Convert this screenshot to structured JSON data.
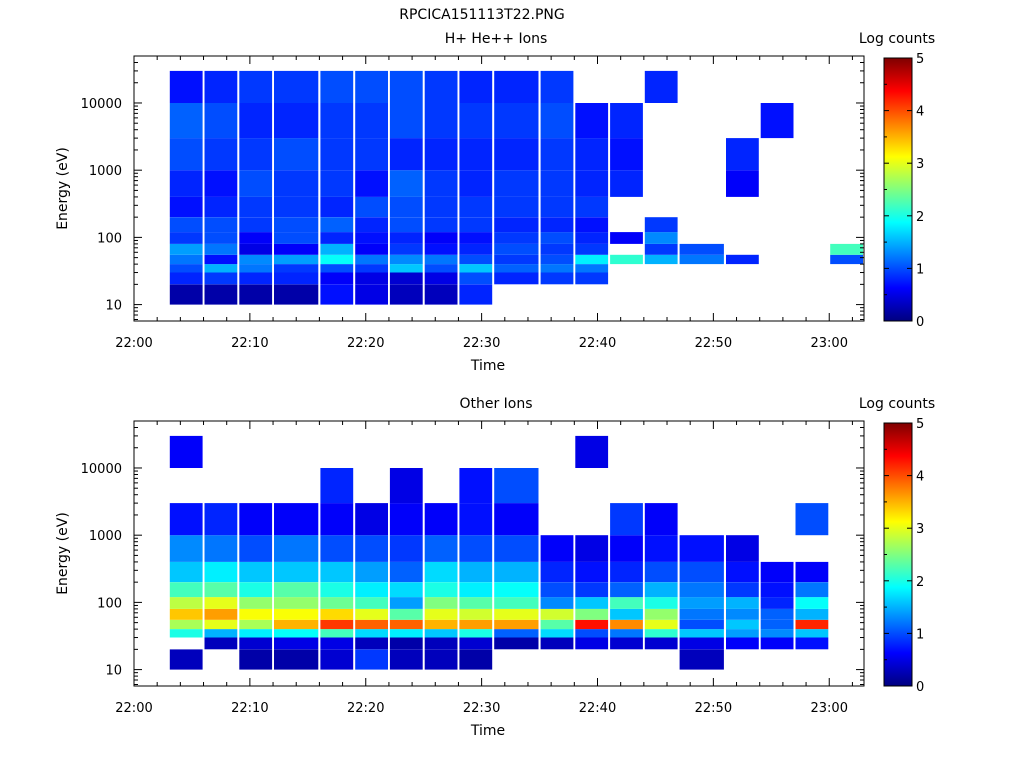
{
  "figure": {
    "title": "RPCICA151113T22.PNG"
  },
  "colorscale": {
    "stops": [
      "#00007f",
      "#0000ff",
      "#0080ff",
      "#00ffff",
      "#80ff80",
      "#ffff00",
      "#ff8000",
      "#ff0000",
      "#7f0000"
    ]
  },
  "chart_data": [
    {
      "type": "heatmap",
      "title": "H+ He++ Ions",
      "xlabel": "Time",
      "ylabel": "Energy (eV)",
      "colorbar_label": "Log counts",
      "colorbar_ticks": [
        "0",
        "1",
        "2",
        "3",
        "4",
        "5"
      ],
      "zlim": [
        0,
        5
      ],
      "xlim": [
        "22:00",
        "23:03"
      ],
      "x_ticks": [
        "22:00",
        "22:10",
        "22:20",
        "22:30",
        "22:40",
        "22:50",
        "23:00"
      ],
      "ylim": [
        5.7,
        50000
      ],
      "y_scale": "log",
      "y_ticks": [
        "10",
        "100",
        "1000",
        "10000"
      ],
      "time_bins_start": [
        "22:03",
        "22:06",
        "22:09",
        "22:12",
        "22:16",
        "22:19",
        "22:22",
        "22:25",
        "22:28",
        "22:31",
        "22:35",
        "22:38",
        "22:41",
        "22:44",
        "22:47",
        "22:51",
        "22:54",
        "22:57",
        "23:00"
      ],
      "energy_bands_ev": [
        10,
        20,
        30,
        40,
        55,
        80,
        120,
        200,
        400,
        1000,
        3000,
        10000,
        30000
      ],
      "log_counts": [
        [
          0.2,
          0.8,
          1.0,
          1.2,
          1.4,
          0.9,
          1.0,
          0.7,
          0.8,
          1.0,
          1.1,
          0.7
        ],
        [
          0.2,
          0.9,
          1.5,
          0.7,
          1.2,
          1.0,
          1.0,
          0.8,
          0.7,
          0.9,
          1.0,
          0.8
        ],
        [
          0.2,
          0.8,
          1.2,
          1.3,
          0.5,
          0.6,
          0.9,
          0.9,
          1.0,
          0.9,
          0.8,
          0.9
        ],
        [
          0.2,
          0.8,
          0.9,
          1.4,
          0.6,
          1.0,
          1.0,
          0.9,
          0.9,
          1.0,
          0.8,
          0.9
        ],
        [
          0.7,
          0.6,
          1.0,
          1.9,
          1.5,
          0.8,
          1.1,
          0.8,
          0.9,
          0.9,
          0.9,
          1.0
        ],
        [
          0.5,
          0.5,
          0.9,
          1.2,
          0.6,
          0.7,
          0.8,
          1.0,
          0.7,
          0.9,
          0.9,
          1.0
        ],
        [
          0.3,
          0.4,
          1.6,
          1.3,
          0.9,
          0.8,
          1.0,
          1.0,
          1.1,
          0.8,
          1.0,
          1.0
        ],
        [
          0.3,
          0.5,
          1.0,
          1.2,
          0.7,
          0.6,
          0.9,
          0.9,
          0.9,
          0.8,
          0.9,
          0.9
        ],
        [
          0.8,
          1.0,
          1.6,
          1.0,
          0.8,
          0.7,
          0.9,
          0.9,
          0.8,
          0.8,
          0.9,
          0.8
        ],
        [
          null,
          0.8,
          1.1,
          0.9,
          1.0,
          0.9,
          0.8,
          0.9,
          0.9,
          0.8,
          0.9,
          0.8
        ],
        [
          null,
          0.9,
          1.2,
          1.0,
          0.9,
          1.0,
          0.8,
          0.9,
          0.9,
          0.9,
          1.0,
          0.9
        ],
        [
          null,
          0.9,
          1.2,
          1.8,
          0.9,
          0.8,
          0.7,
          0.9,
          0.8,
          0.8,
          0.7,
          null
        ],
        [
          null,
          null,
          null,
          2.1,
          null,
          0.6,
          null,
          null,
          0.8,
          0.7,
          0.8,
          null
        ],
        [
          null,
          null,
          null,
          1.5,
          0.9,
          1.3,
          0.9,
          null,
          null,
          null,
          null,
          0.8
        ],
        [
          null,
          null,
          null,
          1.2,
          1.0,
          null,
          null,
          null,
          null,
          null,
          null,
          null
        ],
        [
          null,
          null,
          null,
          0.8,
          null,
          null,
          null,
          null,
          0.6,
          0.8,
          null,
          null
        ],
        [
          null,
          null,
          null,
          null,
          null,
          null,
          null,
          null,
          null,
          null,
          0.7,
          null
        ],
        [
          null,
          null,
          null,
          null,
          null,
          null,
          null,
          null,
          null,
          null,
          null,
          null
        ],
        [
          null,
          null,
          null,
          1.0,
          2.2,
          null,
          null,
          null,
          null,
          null,
          null,
          null
        ]
      ]
    },
    {
      "type": "heatmap",
      "title": "Other Ions",
      "xlabel": "Time",
      "ylabel": "Energy (eV)",
      "colorbar_label": "Log counts",
      "colorbar_ticks": [
        "0",
        "1",
        "2",
        "3",
        "4",
        "5"
      ],
      "zlim": [
        0,
        5
      ],
      "xlim": [
        "22:00",
        "23:03"
      ],
      "x_ticks": [
        "22:00",
        "22:10",
        "22:20",
        "22:30",
        "22:40",
        "22:50",
        "23:00"
      ],
      "ylim": [
        5.7,
        50000
      ],
      "y_scale": "log",
      "y_ticks": [
        "10",
        "100",
        "1000",
        "10000"
      ],
      "time_bins_start": [
        "22:03",
        "22:06",
        "22:09",
        "22:12",
        "22:16",
        "22:19",
        "22:22",
        "22:25",
        "22:28",
        "22:31",
        "22:35",
        "22:38",
        "22:41",
        "22:44",
        "22:47",
        "22:51",
        "22:54",
        "22:57",
        "23:00"
      ],
      "energy_bands_ev": [
        10,
        20,
        30,
        40,
        55,
        80,
        120,
        200,
        400,
        1000,
        3000,
        10000,
        30000
      ],
      "log_counts": [
        [
          0.3,
          null,
          2.0,
          2.7,
          3.4,
          2.8,
          2.2,
          1.6,
          1.3,
          0.7,
          null,
          0.6
        ],
        [
          null,
          0.3,
          1.5,
          3.0,
          3.6,
          3.0,
          2.3,
          1.8,
          1.2,
          0.8,
          null,
          null
        ],
        [
          0.2,
          0.4,
          1.8,
          2.7,
          3.1,
          2.6,
          2.0,
          1.6,
          1.0,
          0.6,
          null,
          null
        ],
        [
          0.2,
          0.5,
          1.9,
          3.5,
          3.1,
          2.6,
          2.3,
          1.6,
          1.2,
          0.6,
          null,
          null
        ],
        [
          0.4,
          0.5,
          2.2,
          4.1,
          3.3,
          2.4,
          2.0,
          1.6,
          1.0,
          0.6,
          0.8,
          null
        ],
        [
          0.9,
          0.3,
          1.7,
          3.9,
          3.0,
          2.2,
          1.8,
          1.4,
          1.0,
          0.5,
          null,
          null
        ],
        [
          0.3,
          0.2,
          1.8,
          3.9,
          2.3,
          1.4,
          1.7,
          1.1,
          0.9,
          0.6,
          0.5,
          null
        ],
        [
          0.3,
          0.3,
          1.6,
          3.5,
          3.0,
          2.5,
          2.0,
          1.7,
          1.1,
          0.6,
          null,
          null
        ],
        [
          0.2,
          0.4,
          2.0,
          3.6,
          2.9,
          2.3,
          1.8,
          1.5,
          1.0,
          0.7,
          0.7,
          null
        ],
        [
          null,
          0.2,
          1.1,
          3.6,
          3.0,
          2.2,
          1.9,
          1.5,
          1.0,
          0.6,
          1.0,
          null
        ],
        [
          null,
          0.3,
          1.7,
          2.3,
          2.9,
          1.3,
          1.0,
          0.8,
          0.6,
          null,
          null,
          null
        ],
        [
          null,
          0.5,
          1.0,
          4.3,
          2.5,
          1.6,
          0.9,
          0.7,
          0.5,
          null,
          null,
          0.5
        ],
        [
          null,
          0.4,
          1.2,
          3.7,
          1.6,
          2.2,
          1.1,
          0.8,
          0.6,
          0.9,
          null,
          null
        ],
        [
          null,
          0.4,
          2.1,
          3.0,
          2.6,
          2.0,
          1.5,
          1.0,
          0.7,
          0.6,
          null,
          null
        ],
        [
          0.3,
          0.5,
          1.6,
          1.0,
          1.2,
          1.4,
          1.2,
          1.0,
          0.7,
          null,
          null,
          null
        ],
        [
          null,
          0.6,
          1.4,
          1.6,
          1.3,
          1.5,
          0.9,
          0.7,
          0.5,
          null,
          null,
          null
        ],
        [
          null,
          0.6,
          1.3,
          1.1,
          1.1,
          0.8,
          0.7,
          0.6,
          null,
          null,
          null,
          null
        ],
        [
          null,
          0.7,
          1.6,
          4.2,
          1.5,
          1.9,
          1.2,
          0.6,
          null,
          1.0,
          null,
          null
        ],
        [
          null,
          null,
          null,
          null,
          null,
          null,
          null,
          null,
          null,
          null,
          null,
          null
        ]
      ]
    }
  ]
}
